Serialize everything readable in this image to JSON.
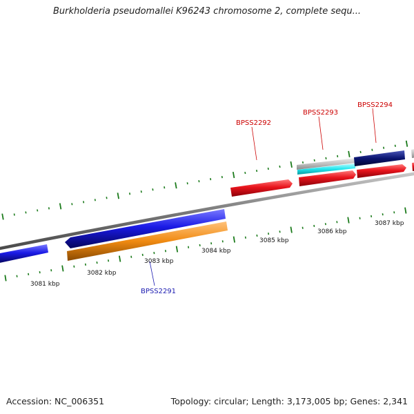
{
  "title": "Burkholderia pseudomallei K96243 chromosome 2, complete sequ...",
  "footer": {
    "accession": "Accession: NC_006351",
    "topology": "Topology: circular; Length: 3,173,005 bp; Genes: 2,341"
  },
  "colors": {
    "backbone": "#808080",
    "tick": "#1a7a1a",
    "forward_gene": "#e8141c",
    "reverse_gene": "#1a1ae6",
    "cds_reverse": "#f08a12",
    "feature_grey": "#c0c0c0",
    "feature_cyan": "#22e6ee",
    "feature_navy": "#0a1470",
    "label_forward": "#cc0000",
    "label_reverse": "#1a1ab0"
  },
  "scale_labels": [
    "3081 kbp",
    "3082 kbp",
    "3083 kbp",
    "3084 kbp",
    "3085 kbp",
    "3086 kbp",
    "3087 kbp"
  ],
  "gene_labels": [
    "BPSS2291",
    "BPSS2292",
    "BPSS2293",
    "BPSS2294"
  ]
}
